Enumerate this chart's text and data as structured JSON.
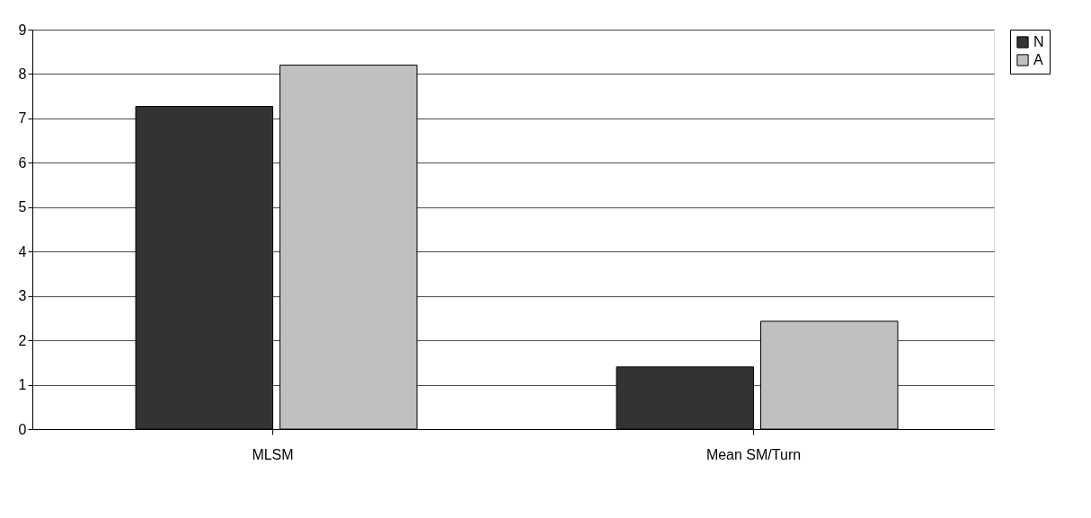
{
  "chart_data": {
    "type": "bar",
    "categories": [
      "MLSM",
      "Mean SM/Turn"
    ],
    "series": [
      {
        "name": "N",
        "color": "#333333",
        "values": [
          7.27,
          1.4
        ]
      },
      {
        "name": "A",
        "color": "#c0c0c0",
        "values": [
          8.2,
          2.43
        ]
      }
    ],
    "ylim": [
      0,
      9
    ],
    "yticks": [
      0,
      1,
      2,
      3,
      4,
      5,
      6,
      7,
      8,
      9
    ],
    "grid": "y",
    "legend": "right"
  }
}
